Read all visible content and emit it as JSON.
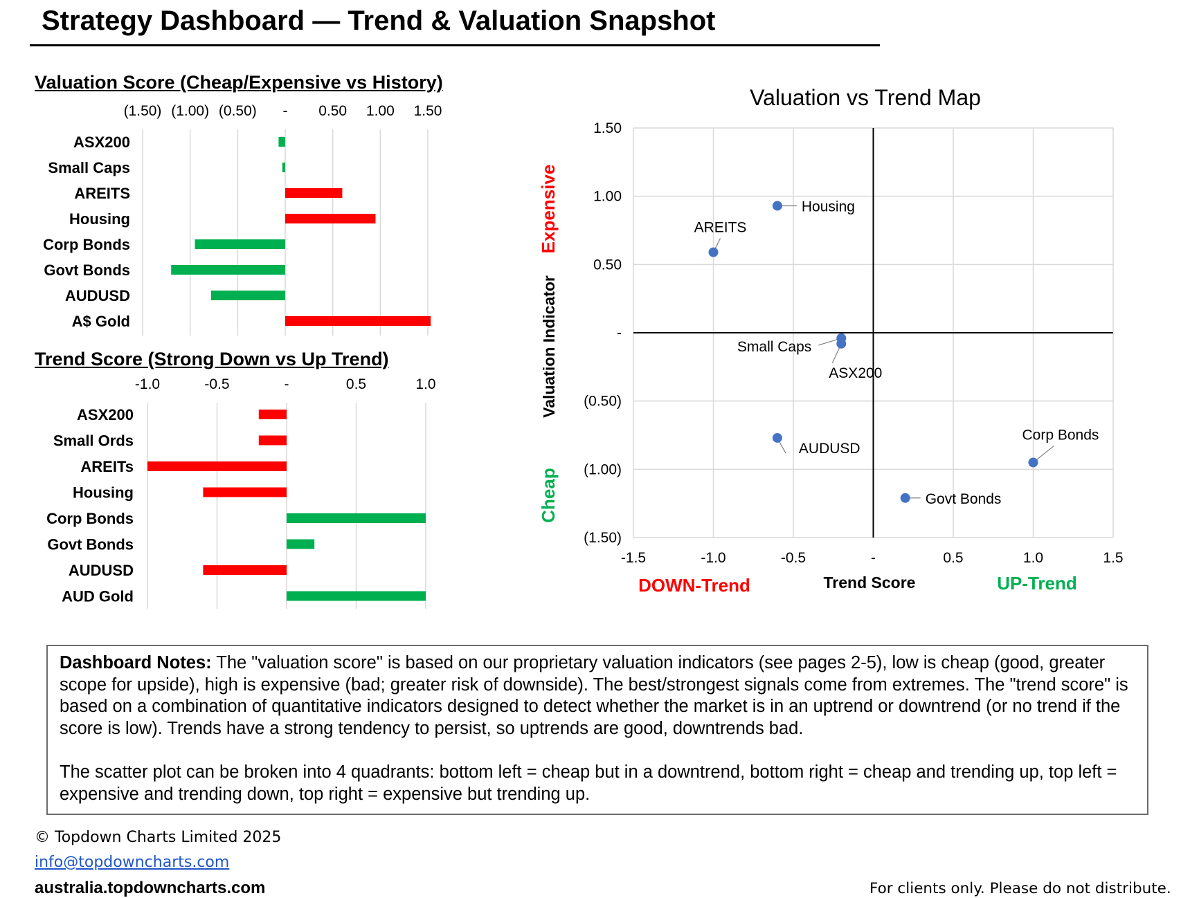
{
  "header": {
    "title": "Strategy Dashboard — Trend & Valuation Snapshot"
  },
  "colors": {
    "positive": "#00B050",
    "negative": "#FF0000",
    "point": "#4472C4",
    "grid": "#D9D9D9"
  },
  "chart_data": [
    {
      "id": "valuation-bars",
      "type": "bar",
      "orientation": "horizontal",
      "title": "Valuation Score (Cheap/Expensive vs History)",
      "categories": [
        "ASX200",
        "Small Caps",
        "AREITS",
        "Housing",
        "Corp Bonds",
        "Govt Bonds",
        "AUDUSD",
        "A$ Gold"
      ],
      "values": [
        -0.07,
        -0.03,
        0.6,
        0.95,
        -0.95,
        -1.2,
        -0.78,
        1.53
      ],
      "xlim": [
        -1.5,
        1.5
      ],
      "ticks": [
        -1.5,
        -1.0,
        -0.5,
        0,
        0.5,
        1.0,
        1.5
      ],
      "tick_labels": [
        "(1.50)",
        "(1.00)",
        "(0.50)",
        "-",
        "0.50",
        "1.00",
        "1.50"
      ],
      "positive_color": "#FF0000",
      "negative_color": "#00B050"
    },
    {
      "id": "trend-bars",
      "type": "bar",
      "orientation": "horizontal",
      "title": "Trend Score (Strong Down vs Up Trend)",
      "categories": [
        "ASX200",
        "Small Ords",
        "AREITs",
        "Housing",
        "Corp Bonds",
        "Govt Bonds",
        "AUDUSD",
        "AUD Gold"
      ],
      "values": [
        -0.2,
        -0.2,
        -1.0,
        -0.6,
        1.0,
        0.2,
        -0.6,
        1.0
      ],
      "xlim": [
        -1.0,
        1.0
      ],
      "ticks": [
        -1.0,
        -0.5,
        0,
        0.5,
        1.0
      ],
      "tick_labels": [
        "-1.0",
        "-0.5",
        "-",
        "0.5",
        "1.0"
      ],
      "positive_color": "#00B050",
      "negative_color": "#FF0000"
    },
    {
      "id": "valuation-trend-map",
      "type": "scatter",
      "title": "Valuation vs Trend Map",
      "xlabel": "Trend Score",
      "ylabel": "Valuation Indicator",
      "xlim": [
        -1.5,
        1.5
      ],
      "ylim": [
        -1.5,
        1.5
      ],
      "x_ticks": [
        -1.5,
        -1.0,
        -0.5,
        0,
        0.5,
        1.0,
        1.5
      ],
      "x_tick_labels": [
        "-1.5",
        "-1.0",
        "-0.5",
        "-",
        "0.5",
        "1.0",
        "1.5"
      ],
      "y_ticks": [
        1.5,
        1.0,
        0.5,
        0,
        -0.5,
        -1.0,
        -1.5
      ],
      "y_tick_labels": [
        "1.50",
        "1.00",
        "0.50",
        "-",
        "(0.50)",
        "(1.00)",
        "(1.50)"
      ],
      "points": [
        {
          "label": "Housing",
          "x": -0.6,
          "y": 0.93
        },
        {
          "label": "AREITS",
          "x": -1.0,
          "y": 0.59
        },
        {
          "label": "Small Caps",
          "x": -0.2,
          "y": -0.04
        },
        {
          "label": "ASX200",
          "x": -0.2,
          "y": -0.08
        },
        {
          "label": "AUDUSD",
          "x": -0.6,
          "y": -0.77
        },
        {
          "label": "Corp Bonds",
          "x": 1.0,
          "y": -0.95
        },
        {
          "label": "Govt Bonds",
          "x": 0.2,
          "y": -1.21
        }
      ],
      "annotations": {
        "expensive": "Expensive",
        "cheap": "Cheap",
        "down_trend": "DOWN-Trend",
        "up_trend": "UP-Trend"
      }
    }
  ],
  "notes": {
    "heading": "Dashboard Notes:",
    "paragraph1": " The \"valuation score\" is based on our proprietary valuation indicators (see pages 2-5), low is cheap (good, greater scope for upside), high is expensive (bad; greater risk of downside). The best/strongest signals come from extremes. The \"trend score\" is based on a combination of quantitative indicators designed to detect whether the market is in an uptrend or downtrend (or no trend if the score is low). Trends have a strong tendency to persist, so uptrends are good, downtrends bad.",
    "paragraph2": "The scatter plot can be broken into 4 quadrants: bottom left = cheap but in a downtrend, bottom right = cheap and trending up, top left = expensive and trending down, top right = expensive but trending up."
  },
  "footer": {
    "copyright": "© Topdown Charts Limited 2025",
    "email": "info@topdowncharts.com",
    "website": "australia.topdowncharts.com",
    "disclaimer": "For clients only.  Please do not distribute."
  }
}
